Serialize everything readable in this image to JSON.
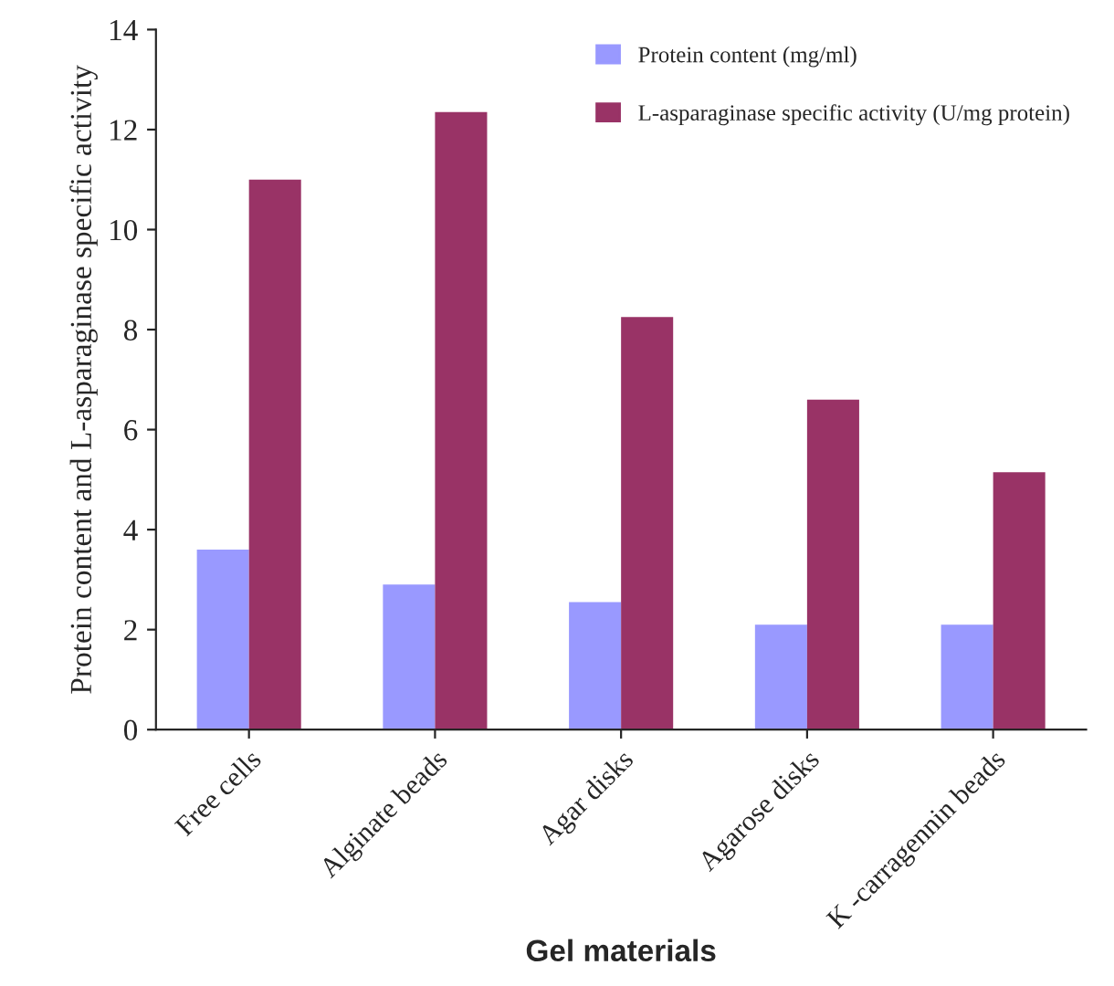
{
  "chart_data": {
    "type": "bar",
    "xlabel": "Gel materials",
    "ylabel": "Protein content and L-asparaginase specific activity",
    "categories": [
      "Free cells",
      "Alginate beads",
      "Agar disks",
      "Agarose disks",
      "K -carragennin beads"
    ],
    "series": [
      {
        "name": "Protein content (mg/ml)",
        "color": "#9999ff",
        "values": [
          3.6,
          2.9,
          2.55,
          2.1,
          2.1
        ]
      },
      {
        "name": "L-asparaginase specific activity (U/mg protein)",
        "color": "#993366",
        "values": [
          11.0,
          12.35,
          8.25,
          6.6,
          5.15
        ]
      }
    ],
    "ylim": [
      0,
      14
    ],
    "yticks": [
      0,
      2,
      4,
      6,
      8,
      10,
      12,
      14
    ],
    "grid": false,
    "legend": "top right"
  }
}
